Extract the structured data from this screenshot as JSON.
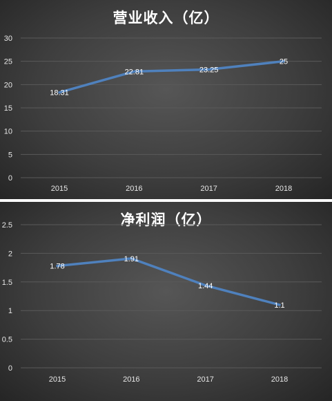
{
  "chart_data": [
    {
      "type": "line",
      "title": "营业收入（亿）",
      "categories": [
        "2015",
        "2016",
        "2017",
        "2018"
      ],
      "values": [
        18.31,
        22.81,
        23.25,
        25
      ],
      "data_labels": [
        "18.31",
        "22.81",
        "23.25",
        "25"
      ],
      "yticks": [
        "0",
        "5",
        "10",
        "15",
        "20",
        "25",
        "30"
      ],
      "ylim": [
        0,
        30
      ],
      "grid": true,
      "series_color": "#4f81bd"
    },
    {
      "type": "line",
      "title": "净利润（亿）",
      "categories": [
        "2015",
        "2016",
        "2017",
        "2018"
      ],
      "values": [
        1.78,
        1.91,
        1.44,
        1.1
      ],
      "data_labels": [
        "1.78",
        "1.91",
        "1.44",
        "1.1"
      ],
      "yticks": [
        "0",
        "0.5",
        "1",
        "1.5",
        "2",
        "2.5"
      ],
      "ylim": [
        0,
        2.5
      ],
      "grid": true,
      "series_color": "#4f81bd"
    }
  ]
}
